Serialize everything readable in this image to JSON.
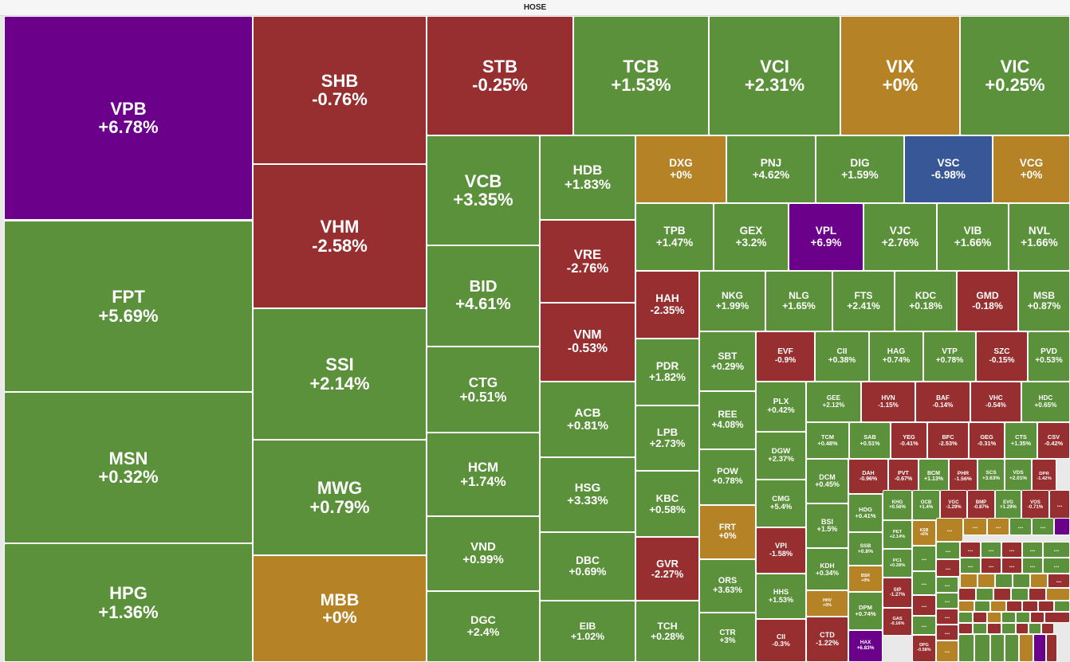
{
  "exchange": "HOSE",
  "colors": {
    "up": "#5b913b",
    "down": "#972e2f",
    "flat": "#b68226",
    "ceiling": "#6b008b",
    "floor": "#385797"
  },
  "stocks": [
    {
      "symbol": "VPB",
      "change": "+6.78%",
      "status": "ceiling"
    },
    {
      "symbol": "FPT",
      "change": "+5.69%",
      "status": "up"
    },
    {
      "symbol": "MSN",
      "change": "+0.32%",
      "status": "up"
    },
    {
      "symbol": "HPG",
      "change": "+1.36%",
      "status": "up"
    },
    {
      "symbol": "SHB",
      "change": "-0.76%",
      "status": "down"
    },
    {
      "symbol": "VHM",
      "change": "-2.58%",
      "status": "down"
    },
    {
      "symbol": "SSI",
      "change": "+2.14%",
      "status": "up"
    },
    {
      "symbol": "MWG",
      "change": "+0.79%",
      "status": "up"
    },
    {
      "symbol": "MBB",
      "change": "+0%",
      "status": "flat"
    },
    {
      "symbol": "STB",
      "change": "-0.25%",
      "status": "down"
    },
    {
      "symbol": "TCB",
      "change": "+1.53%",
      "status": "up"
    },
    {
      "symbol": "VCI",
      "change": "+2.31%",
      "status": "up"
    },
    {
      "symbol": "VIX",
      "change": "+0%",
      "status": "flat"
    },
    {
      "symbol": "VIC",
      "change": "+0.25%",
      "status": "up"
    },
    {
      "symbol": "VCB",
      "change": "+3.35%",
      "status": "up"
    },
    {
      "symbol": "BID",
      "change": "+4.61%",
      "status": "up"
    },
    {
      "symbol": "CTG",
      "change": "+0.51%",
      "status": "up"
    },
    {
      "symbol": "HCM",
      "change": "+1.74%",
      "status": "up"
    },
    {
      "symbol": "VND",
      "change": "+0.99%",
      "status": "up"
    },
    {
      "symbol": "DGC",
      "change": "+2.4%",
      "status": "up"
    },
    {
      "symbol": "HDB",
      "change": "+1.83%",
      "status": "up"
    },
    {
      "symbol": "VRE",
      "change": "-2.76%",
      "status": "down"
    },
    {
      "symbol": "VNM",
      "change": "-0.53%",
      "status": "down"
    },
    {
      "symbol": "ACB",
      "change": "+0.81%",
      "status": "up"
    },
    {
      "symbol": "HSG",
      "change": "+3.33%",
      "status": "up"
    },
    {
      "symbol": "DBC",
      "change": "+0.69%",
      "status": "up"
    },
    {
      "symbol": "EIB",
      "change": "+1.02%",
      "status": "up"
    },
    {
      "symbol": "DXG",
      "change": "+0%",
      "status": "flat"
    },
    {
      "symbol": "PNJ",
      "change": "+4.62%",
      "status": "up"
    },
    {
      "symbol": "DIG",
      "change": "+1.59%",
      "status": "up"
    },
    {
      "symbol": "VSC",
      "change": "-6.98%",
      "status": "floor"
    },
    {
      "symbol": "VCG",
      "change": "+0%",
      "status": "flat"
    },
    {
      "symbol": "TPB",
      "change": "+1.47%",
      "status": "up"
    },
    {
      "symbol": "GEX",
      "change": "+3.2%",
      "status": "up"
    },
    {
      "symbol": "VPL",
      "change": "+6.9%",
      "status": "ceiling"
    },
    {
      "symbol": "VJC",
      "change": "+2.76%",
      "status": "up"
    },
    {
      "symbol": "VIB",
      "change": "+1.66%",
      "status": "up"
    },
    {
      "symbol": "NVL",
      "change": "+1.66%",
      "status": "up"
    },
    {
      "symbol": "HAH",
      "change": "-2.35%",
      "status": "down"
    },
    {
      "symbol": "NKG",
      "change": "+1.99%",
      "status": "up"
    },
    {
      "symbol": "NLG",
      "change": "+1.65%",
      "status": "up"
    },
    {
      "symbol": "FTS",
      "change": "+2.41%",
      "status": "up"
    },
    {
      "symbol": "KDC",
      "change": "+0.18%",
      "status": "up"
    },
    {
      "symbol": "GMD",
      "change": "-0.18%",
      "status": "down"
    },
    {
      "symbol": "MSB",
      "change": "+0.87%",
      "status": "up"
    },
    {
      "symbol": "PDR",
      "change": "+1.82%",
      "status": "up"
    },
    {
      "symbol": "SBT",
      "change": "+0.29%",
      "status": "up"
    },
    {
      "symbol": "EVF",
      "change": "-0.9%",
      "status": "down"
    },
    {
      "symbol": "CII",
      "change": "+0.38%",
      "status": "up"
    },
    {
      "symbol": "HAG",
      "change": "+0.74%",
      "status": "up"
    },
    {
      "symbol": "VTP",
      "change": "+0.78%",
      "status": "up"
    },
    {
      "symbol": "SZC",
      "change": "-0.15%",
      "status": "down"
    },
    {
      "symbol": "PVD",
      "change": "+0.53%",
      "status": "up"
    },
    {
      "symbol": "LPB",
      "change": "+2.73%",
      "status": "up"
    },
    {
      "symbol": "REE",
      "change": "+4.08%",
      "status": "up"
    },
    {
      "symbol": "PLX",
      "change": "+0.42%",
      "status": "up"
    },
    {
      "symbol": "GEE",
      "change": "+2.12%",
      "status": "up"
    },
    {
      "symbol": "HVN",
      "change": "-1.15%",
      "status": "down"
    },
    {
      "symbol": "BAF",
      "change": "-0.14%",
      "status": "down"
    },
    {
      "symbol": "VHC",
      "change": "-0.54%",
      "status": "down"
    },
    {
      "symbol": "HDC",
      "change": "+0.65%",
      "status": "up"
    },
    {
      "symbol": "KBC",
      "change": "+0.58%",
      "status": "up"
    },
    {
      "symbol": "POW",
      "change": "+0.78%",
      "status": "up"
    },
    {
      "symbol": "DGW",
      "change": "+2.37%",
      "status": "up"
    },
    {
      "symbol": "TCM",
      "change": "+0.48%",
      "status": "up"
    },
    {
      "symbol": "SAB",
      "change": "+0.51%",
      "status": "up"
    },
    {
      "symbol": "YEG",
      "change": "-0.41%",
      "status": "down"
    },
    {
      "symbol": "BFC",
      "change": "-2.53%",
      "status": "down"
    },
    {
      "symbol": "GEG",
      "change": "-0.31%",
      "status": "down"
    },
    {
      "symbol": "CTS",
      "change": "+1.35%",
      "status": "up"
    },
    {
      "symbol": "CSV",
      "change": "-0.42%",
      "status": "down"
    },
    {
      "symbol": "FRT",
      "change": "+0%",
      "status": "flat"
    },
    {
      "symbol": "CMG",
      "change": "+5.4%",
      "status": "up"
    },
    {
      "symbol": "DCM",
      "change": "+0.45%",
      "status": "up"
    },
    {
      "symbol": "DAH",
      "change": "-0.96%",
      "status": "down"
    },
    {
      "symbol": "PVT",
      "change": "-0.67%",
      "status": "down"
    },
    {
      "symbol": "BCM",
      "change": "+1.13%",
      "status": "up"
    },
    {
      "symbol": "PHR",
      "change": "-1.56%",
      "status": "down"
    },
    {
      "symbol": "SCS",
      "change": "+3.63%",
      "status": "up"
    },
    {
      "symbol": "VDS",
      "change": "+2.01%",
      "status": "up"
    },
    {
      "symbol": "DPR",
      "change": "-1.42%",
      "status": "down"
    },
    {
      "symbol": "GVR",
      "change": "-2.27%",
      "status": "down"
    },
    {
      "symbol": "ORS",
      "change": "+3.63%",
      "status": "up"
    },
    {
      "symbol": "VPI",
      "change": "-1.58%",
      "status": "down"
    },
    {
      "symbol": "BSI",
      "change": "+1.5%",
      "status": "up"
    },
    {
      "symbol": "HDG",
      "change": "+0.41%",
      "status": "up"
    },
    {
      "symbol": "KHG",
      "change": "+0.56%",
      "status": "up"
    },
    {
      "symbol": "OCB",
      "change": "+1.4%",
      "status": "up"
    },
    {
      "symbol": "VGC",
      "change": "-1.29%",
      "status": "down"
    },
    {
      "symbol": "BMP",
      "change": "-0.87%",
      "status": "down"
    },
    {
      "symbol": "EVG",
      "change": "+1.29%",
      "status": "up"
    },
    {
      "symbol": "VOS",
      "change": "-0.71%",
      "status": "down"
    },
    {
      "symbol": "TCH",
      "change": "+0.28%",
      "status": "up"
    },
    {
      "symbol": "CTR",
      "change": "+3%",
      "status": "up"
    },
    {
      "symbol": "HHS",
      "change": "+1.53%",
      "status": "up"
    },
    {
      "symbol": "KDH",
      "change": "+0.34%",
      "status": "up"
    },
    {
      "symbol": "SSB",
      "change": "+0.8%",
      "status": "up"
    },
    {
      "symbol": "PET",
      "change": "+2.14%",
      "status": "up"
    },
    {
      "symbol": "KSB",
      "change": "+0%",
      "status": "flat"
    },
    {
      "symbol": "HHV",
      "change": "+0%",
      "status": "flat"
    },
    {
      "symbol": "BSR",
      "change": "+0%",
      "status": "flat"
    },
    {
      "symbol": "PC1",
      "change": "+0.28%",
      "status": "up"
    },
    {
      "symbol": "HQC",
      "change": "-1.21%",
      "status": "down"
    },
    {
      "symbol": "CII",
      "change": "-0.3%",
      "status": "down"
    },
    {
      "symbol": "CTD",
      "change": "-1.22%",
      "status": "down"
    },
    {
      "symbol": "DPM",
      "change": "+0.74%",
      "status": "up"
    },
    {
      "symbol": "SIP",
      "change": "-1.27%",
      "status": "down"
    },
    {
      "symbol": "HAX",
      "change": "+6.83%",
      "status": "ceiling"
    },
    {
      "symbol": "GAS",
      "change": "-0.16%",
      "status": "down"
    },
    {
      "symbol": "DPG",
      "change": "-0.58%",
      "status": "down"
    },
    {
      "symbol": "LCC",
      "change": "+0.32%",
      "status": "up"
    }
  ],
  "small_tiles": {
    "label": "...",
    "statuses": [
      "down",
      "flat",
      "flat",
      "flat",
      "up",
      "up",
      "ceiling",
      "up",
      "up",
      "down",
      "up",
      "down",
      "up",
      "up",
      "up",
      "down",
      "up",
      "down",
      "down",
      "up",
      "up",
      "down",
      "up",
      "flat",
      "flat",
      "up",
      "up",
      "flat",
      "down",
      "up",
      "up",
      "down",
      "up",
      "down",
      "up",
      "down",
      "flat",
      "down",
      "flat",
      "up",
      "flat",
      "down",
      "down",
      "down",
      "up",
      "down",
      "up",
      "down",
      "flat",
      "up",
      "up",
      "down",
      "down",
      "flat",
      "down",
      "up",
      "down",
      "up",
      "down",
      "up",
      "down",
      "up",
      "up",
      "up",
      "up",
      "flat",
      "ceiling",
      "down"
    ]
  }
}
